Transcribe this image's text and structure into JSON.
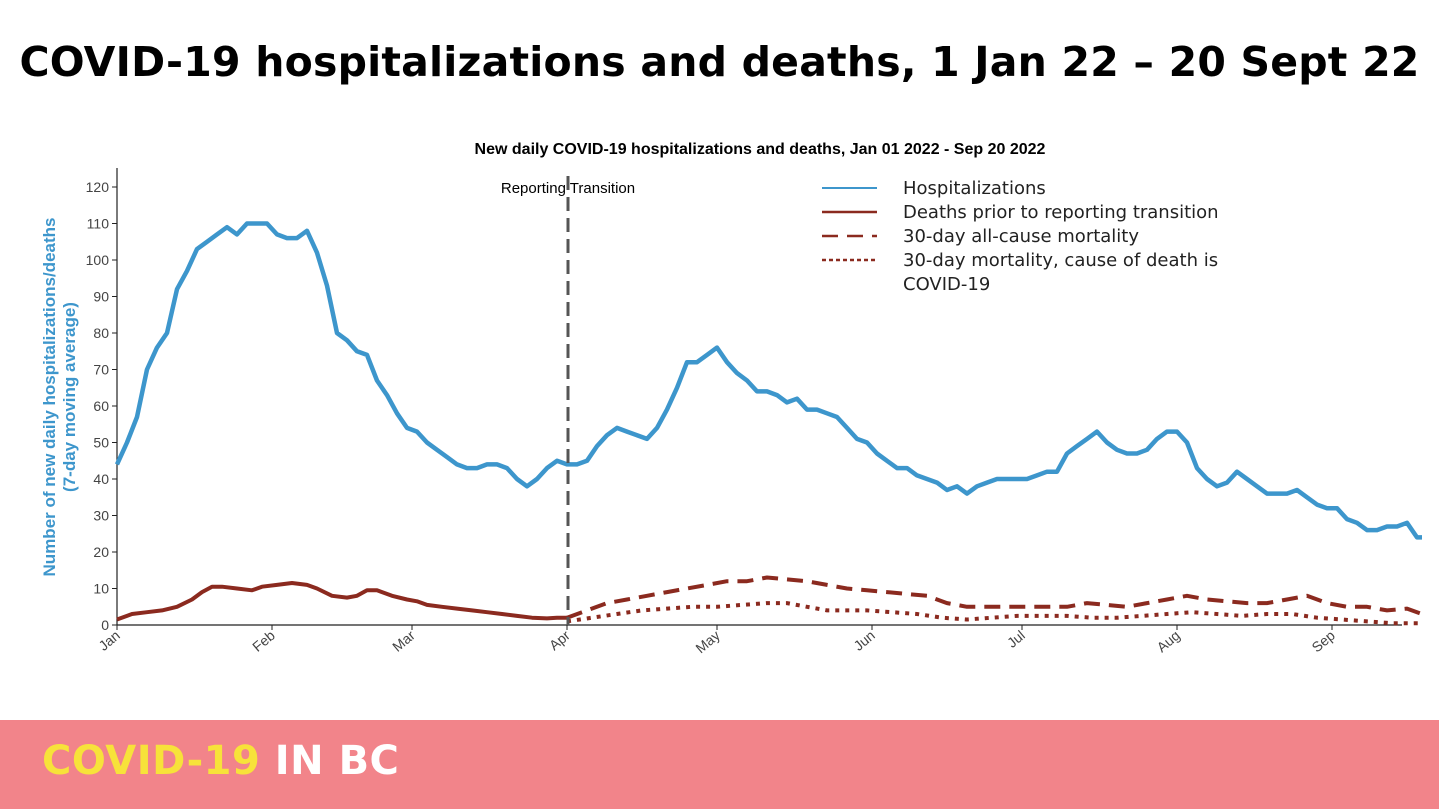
{
  "slide": {
    "title": "COVID-19 hospitalizations and deaths, 1 Jan 22 – 20 Sept 22"
  },
  "footer": {
    "brand_part1": "COVID-19",
    "brand_part2": "IN BC",
    "background_color": "#f2848a",
    "brand_color_1": "#f7e23a",
    "brand_color_2": "#ffffff"
  },
  "chart_data": {
    "type": "line",
    "title": "New daily COVID-19 hospitalizations and deaths, Jan 01 2022 - Sep 20 2022",
    "xlabel": "",
    "ylabel": "Number of new daily hospitalizations/deaths",
    "ylabel_sub": "(7-day moving average)",
    "xlim_days": [
      0,
      263
    ],
    "ylim": [
      0,
      126
    ],
    "yticks": [
      0,
      10,
      20,
      30,
      40,
      50,
      60,
      70,
      80,
      90,
      100,
      110,
      120
    ],
    "xticks": [
      {
        "label": "Jan",
        "day": 0
      },
      {
        "label": "Feb",
        "day": 31
      },
      {
        "label": "Mar",
        "day": 59
      },
      {
        "label": "Apr",
        "day": 90
      },
      {
        "label": "May",
        "day": 120
      },
      {
        "label": "Jun",
        "day": 151
      },
      {
        "label": "Jul",
        "day": 181
      },
      {
        "label": "Aug",
        "day": 212
      },
      {
        "label": "Sep",
        "day": 243
      }
    ],
    "annotation": {
      "text": "Reporting Transition",
      "day": 90
    },
    "legend_position": "top-right",
    "series": [
      {
        "name": "Hospitalizations",
        "style": "solid",
        "color": "#3d96cc",
        "points": [
          [
            0,
            44
          ],
          [
            2,
            50
          ],
          [
            4,
            57
          ],
          [
            6,
            70
          ],
          [
            8,
            76
          ],
          [
            10,
            80
          ],
          [
            12,
            92
          ],
          [
            14,
            97
          ],
          [
            16,
            103
          ],
          [
            18,
            105
          ],
          [
            20,
            107
          ],
          [
            22,
            109
          ],
          [
            24,
            107
          ],
          [
            26,
            110
          ],
          [
            28,
            110
          ],
          [
            30,
            110
          ],
          [
            32,
            107
          ],
          [
            34,
            106
          ],
          [
            36,
            106
          ],
          [
            38,
            108
          ],
          [
            40,
            102
          ],
          [
            42,
            93
          ],
          [
            44,
            80
          ],
          [
            46,
            78
          ],
          [
            48,
            75
          ],
          [
            50,
            74
          ],
          [
            52,
            67
          ],
          [
            54,
            63
          ],
          [
            56,
            58
          ],
          [
            58,
            54
          ],
          [
            60,
            53
          ],
          [
            62,
            50
          ],
          [
            64,
            48
          ],
          [
            66,
            46
          ],
          [
            68,
            44
          ],
          [
            70,
            43
          ],
          [
            72,
            43
          ],
          [
            74,
            44
          ],
          [
            76,
            44
          ],
          [
            78,
            43
          ],
          [
            80,
            40
          ],
          [
            82,
            38
          ],
          [
            84,
            40
          ],
          [
            86,
            43
          ],
          [
            88,
            45
          ],
          [
            90,
            44
          ],
          [
            92,
            44
          ],
          [
            94,
            45
          ],
          [
            96,
            49
          ],
          [
            98,
            52
          ],
          [
            100,
            54
          ],
          [
            102,
            53
          ],
          [
            104,
            52
          ],
          [
            106,
            51
          ],
          [
            108,
            54
          ],
          [
            110,
            59
          ],
          [
            112,
            65
          ],
          [
            114,
            72
          ],
          [
            116,
            72
          ],
          [
            118,
            74
          ],
          [
            120,
            76
          ],
          [
            122,
            72
          ],
          [
            124,
            69
          ],
          [
            126,
            67
          ],
          [
            128,
            64
          ],
          [
            130,
            64
          ],
          [
            132,
            63
          ],
          [
            134,
            61
          ],
          [
            136,
            62
          ],
          [
            138,
            59
          ],
          [
            140,
            59
          ],
          [
            142,
            58
          ],
          [
            144,
            57
          ],
          [
            146,
            54
          ],
          [
            148,
            51
          ],
          [
            150,
            50
          ],
          [
            152,
            47
          ],
          [
            154,
            45
          ],
          [
            156,
            43
          ],
          [
            158,
            43
          ],
          [
            160,
            41
          ],
          [
            162,
            40
          ],
          [
            164,
            39
          ],
          [
            166,
            37
          ],
          [
            168,
            38
          ],
          [
            170,
            36
          ],
          [
            172,
            38
          ],
          [
            174,
            39
          ],
          [
            176,
            40
          ],
          [
            178,
            40
          ],
          [
            180,
            40
          ],
          [
            182,
            40
          ],
          [
            184,
            41
          ],
          [
            186,
            42
          ],
          [
            188,
            42
          ],
          [
            190,
            47
          ],
          [
            192,
            49
          ],
          [
            194,
            51
          ],
          [
            196,
            53
          ],
          [
            198,
            50
          ],
          [
            200,
            48
          ],
          [
            202,
            47
          ],
          [
            204,
            47
          ],
          [
            206,
            48
          ],
          [
            208,
            51
          ],
          [
            210,
            53
          ],
          [
            212,
            53
          ],
          [
            214,
            50
          ],
          [
            216,
            43
          ],
          [
            218,
            40
          ],
          [
            220,
            38
          ],
          [
            222,
            39
          ],
          [
            224,
            42
          ],
          [
            226,
            40
          ],
          [
            228,
            38
          ],
          [
            230,
            36
          ],
          [
            232,
            36
          ],
          [
            234,
            36
          ],
          [
            236,
            37
          ],
          [
            238,
            35
          ],
          [
            240,
            33
          ],
          [
            242,
            32
          ],
          [
            244,
            32
          ],
          [
            246,
            29
          ],
          [
            248,
            28
          ],
          [
            250,
            26
          ],
          [
            252,
            26
          ],
          [
            254,
            27
          ],
          [
            256,
            27
          ],
          [
            258,
            28
          ],
          [
            260,
            24
          ],
          [
            261,
            24
          ]
        ]
      },
      {
        "name": "Deaths prior to reporting transition",
        "style": "solid",
        "color": "#8b2a1f",
        "points": [
          [
            0,
            1.5
          ],
          [
            3,
            3
          ],
          [
            6,
            3.5
          ],
          [
            9,
            4
          ],
          [
            12,
            5
          ],
          [
            15,
            7
          ],
          [
            17,
            9
          ],
          [
            19,
            10.5
          ],
          [
            21,
            10.5
          ],
          [
            24,
            10
          ],
          [
            27,
            9.5
          ],
          [
            29,
            10.5
          ],
          [
            32,
            11
          ],
          [
            35,
            11.5
          ],
          [
            38,
            11
          ],
          [
            40,
            10
          ],
          [
            43,
            8
          ],
          [
            46,
            7.5
          ],
          [
            48,
            8
          ],
          [
            50,
            9.5
          ],
          [
            52,
            9.5
          ],
          [
            55,
            8
          ],
          [
            58,
            7
          ],
          [
            60,
            6.5
          ],
          [
            62,
            5.5
          ],
          [
            65,
            5
          ],
          [
            68,
            4.5
          ],
          [
            71,
            4
          ],
          [
            74,
            3.5
          ],
          [
            77,
            3
          ],
          [
            80,
            2.5
          ],
          [
            83,
            2
          ],
          [
            86,
            1.8
          ],
          [
            88,
            2
          ],
          [
            90,
            2
          ]
        ]
      },
      {
        "name": "30-day all-cause mortality",
        "style": "dashed",
        "color": "#8b2a1f",
        "points": [
          [
            90,
            2
          ],
          [
            94,
            4
          ],
          [
            98,
            6
          ],
          [
            102,
            7
          ],
          [
            106,
            8
          ],
          [
            110,
            9
          ],
          [
            114,
            10
          ],
          [
            118,
            11
          ],
          [
            122,
            12
          ],
          [
            126,
            12
          ],
          [
            130,
            13
          ],
          [
            134,
            12.5
          ],
          [
            138,
            12
          ],
          [
            142,
            11
          ],
          [
            146,
            10
          ],
          [
            150,
            9.5
          ],
          [
            154,
            9
          ],
          [
            158,
            8.5
          ],
          [
            162,
            8
          ],
          [
            166,
            6
          ],
          [
            170,
            5
          ],
          [
            174,
            5
          ],
          [
            178,
            5
          ],
          [
            182,
            5
          ],
          [
            186,
            5
          ],
          [
            190,
            5
          ],
          [
            194,
            6
          ],
          [
            198,
            5.5
          ],
          [
            202,
            5
          ],
          [
            206,
            6
          ],
          [
            210,
            7
          ],
          [
            214,
            8
          ],
          [
            218,
            7
          ],
          [
            222,
            6.5
          ],
          [
            226,
            6
          ],
          [
            230,
            6
          ],
          [
            234,
            7
          ],
          [
            238,
            8
          ],
          [
            242,
            6
          ],
          [
            246,
            5
          ],
          [
            250,
            5
          ],
          [
            254,
            4
          ],
          [
            258,
            4.5
          ],
          [
            261,
            3
          ]
        ]
      },
      {
        "name": "30-day mortality, cause of death is COVID-19",
        "style": "dotted",
        "color": "#8b2a1f",
        "points": [
          [
            90,
            1
          ],
          [
            95,
            2
          ],
          [
            100,
            3
          ],
          [
            105,
            4
          ],
          [
            110,
            4.5
          ],
          [
            115,
            5
          ],
          [
            120,
            5
          ],
          [
            125,
            5.5
          ],
          [
            130,
            6
          ],
          [
            134,
            6
          ],
          [
            138,
            5
          ],
          [
            142,
            4
          ],
          [
            146,
            4
          ],
          [
            150,
            4
          ],
          [
            155,
            3.5
          ],
          [
            160,
            3
          ],
          [
            165,
            2
          ],
          [
            170,
            1.5
          ],
          [
            175,
            2
          ],
          [
            180,
            2.5
          ],
          [
            185,
            2.5
          ],
          [
            190,
            2.5
          ],
          [
            195,
            2
          ],
          [
            200,
            2
          ],
          [
            205,
            2.5
          ],
          [
            210,
            3
          ],
          [
            215,
            3.5
          ],
          [
            220,
            3
          ],
          [
            225,
            2.5
          ],
          [
            230,
            3
          ],
          [
            235,
            3
          ],
          [
            240,
            2
          ],
          [
            245,
            1.5
          ],
          [
            250,
            1
          ],
          [
            255,
            0.5
          ],
          [
            261,
            0.5
          ]
        ]
      }
    ]
  }
}
